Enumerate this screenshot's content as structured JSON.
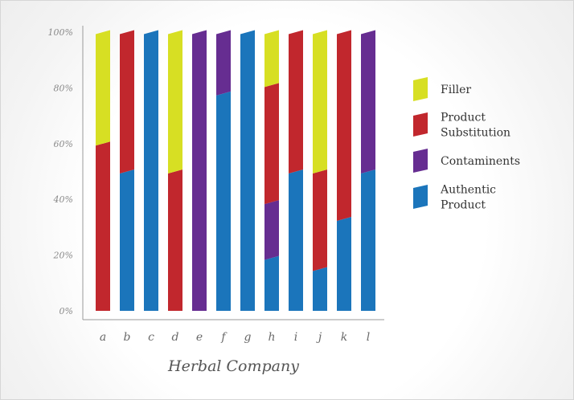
{
  "chart_data": {
    "type": "bar",
    "stacked": true,
    "xlabel": "Herbal Company",
    "ylabel": "",
    "ylim": [
      0,
      100
    ],
    "yticks": [
      "0%",
      "20%",
      "40%",
      "60%",
      "80%",
      "100%"
    ],
    "categories": [
      "a",
      "b",
      "c",
      "d",
      "e",
      "f",
      "g",
      "h",
      "i",
      "j",
      "k",
      "l"
    ],
    "series": [
      {
        "name": "Authentic Product",
        "color": "#1b75bb",
        "values": [
          0,
          50,
          100,
          0,
          0,
          78,
          100,
          19,
          50,
          15,
          33,
          50
        ]
      },
      {
        "name": "Contaminents",
        "color": "#662d91",
        "values": [
          0,
          0,
          0,
          0,
          100,
          22,
          0,
          20,
          0,
          0,
          0,
          50
        ]
      },
      {
        "name": "Product Substitution",
        "color": "#c1272d",
        "values": [
          60,
          50,
          0,
          50,
          0,
          0,
          0,
          42,
          50,
          35,
          67,
          0
        ]
      },
      {
        "name": "Filler",
        "color": "#d7df23",
        "values": [
          40,
          0,
          0,
          50,
          0,
          0,
          0,
          19,
          0,
          50,
          0,
          0
        ]
      }
    ],
    "legend": {
      "placement": "right",
      "order": [
        "Filler",
        "Product Substitution",
        "Contaminents",
        "Authentic Product"
      ],
      "entries": [
        {
          "series": "Filler",
          "lines": [
            "Filler"
          ]
        },
        {
          "series": "Product Substitution",
          "lines": [
            "Product",
            "Substitution"
          ]
        },
        {
          "series": "Contaminents",
          "lines": [
            "Contaminents"
          ]
        },
        {
          "series": "Authentic Product",
          "lines": [
            "Authentic",
            "Product"
          ]
        }
      ]
    },
    "grid": false
  }
}
